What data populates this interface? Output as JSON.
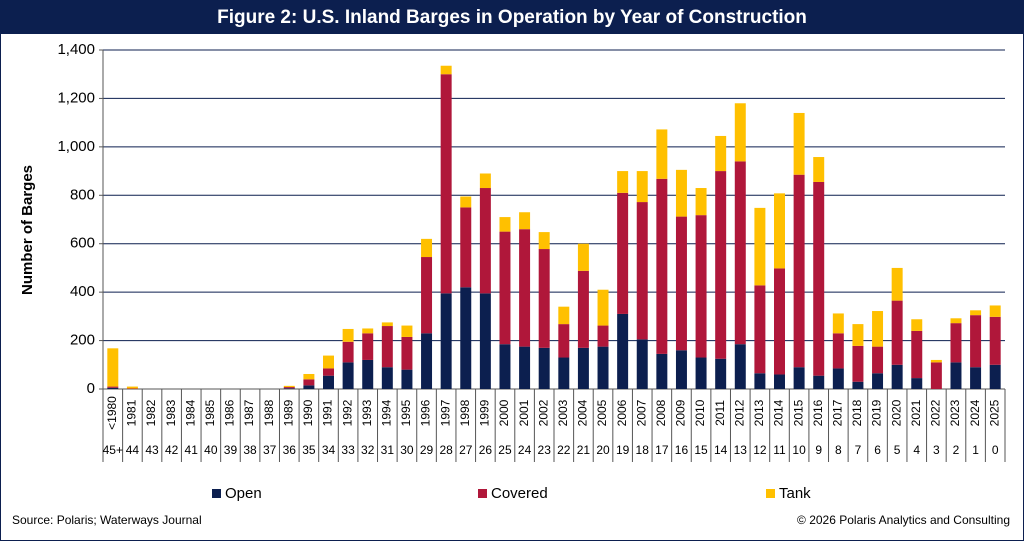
{
  "chart_data": {
    "type": "stacked-bar",
    "title": "Figure 2: U.S. Inland Barges in Operation by Year of Construction",
    "y_label": "Number of Barges",
    "source": "Source: Polaris; Waterways Journal",
    "copyright": "© 2026 Polaris Analytics and Consulting",
    "categories": [
      "<1980",
      "1981",
      "1982",
      "1983",
      "1984",
      "1985",
      "1986",
      "1987",
      "1988",
      "1989",
      "1990",
      "1991",
      "1992",
      "1993",
      "1994",
      "1995",
      "1996",
      "1997",
      "1998",
      "1999",
      "2000",
      "2001",
      "2002",
      "2003",
      "2004",
      "2005",
      "2006",
      "2007",
      "2008",
      "2009",
      "2010",
      "2011",
      "2012",
      "2013",
      "2014",
      "2015",
      "2016",
      "2017",
      "2018",
      "2019",
      "2020",
      "2021",
      "2022",
      "2023",
      "2024",
      "2025"
    ],
    "ages": [
      "45+",
      "44",
      "43",
      "42",
      "41",
      "40",
      "39",
      "38",
      "37",
      "36",
      "35",
      "34",
      "33",
      "32",
      "31",
      "30",
      "29",
      "28",
      "27",
      "26",
      "25",
      "24",
      "23",
      "22",
      "21",
      "20",
      "19",
      "18",
      "17",
      "16",
      "15",
      "14",
      "13",
      "12",
      "11",
      "10",
      "9",
      "8",
      "7",
      "6",
      "5",
      "4",
      "3",
      "2",
      "1",
      "0"
    ],
    "series": [
      {
        "name": "Open",
        "color": "#0c1f4f",
        "values": [
          5,
          0,
          0,
          0,
          0,
          0,
          0,
          0,
          0,
          3,
          15,
          55,
          110,
          120,
          90,
          80,
          230,
          395,
          420,
          395,
          185,
          175,
          170,
          130,
          170,
          175,
          310,
          205,
          145,
          160,
          130,
          125,
          185,
          65,
          60,
          90,
          55,
          85,
          30,
          65,
          100,
          45,
          0,
          110,
          90,
          100
        ]
      },
      {
        "name": "Covered",
        "color": "#b0173a",
        "values": [
          5,
          2,
          0,
          0,
          0,
          0,
          0,
          0,
          0,
          5,
          25,
          30,
          85,
          110,
          170,
          135,
          315,
          905,
          330,
          435,
          465,
          485,
          408,
          138,
          318,
          87,
          500,
          567,
          723,
          552,
          588,
          775,
          755,
          363,
          438,
          795,
          800,
          145,
          148,
          110,
          265,
          195,
          110,
          162,
          215,
          198
        ]
      },
      {
        "name": "Tank",
        "color": "#ffc000",
        "values": [
          158,
          8,
          0,
          0,
          0,
          0,
          0,
          0,
          0,
          5,
          22,
          53,
          53,
          20,
          15,
          47,
          75,
          35,
          45,
          60,
          60,
          70,
          70,
          72,
          112,
          148,
          90,
          128,
          204,
          193,
          112,
          145,
          240,
          320,
          310,
          255,
          103,
          82,
          90,
          147,
          135,
          48,
          10,
          20,
          20,
          47
        ]
      }
    ],
    "ylim": [
      0,
      1400
    ],
    "yticks": [
      0,
      200,
      400,
      600,
      800,
      {
        "value": 1000,
        "label": "1,000"
      },
      {
        "value": 1200,
        "label": "1,200"
      },
      {
        "value": 1400,
        "label": "1,400"
      }
    ],
    "grid": true
  }
}
